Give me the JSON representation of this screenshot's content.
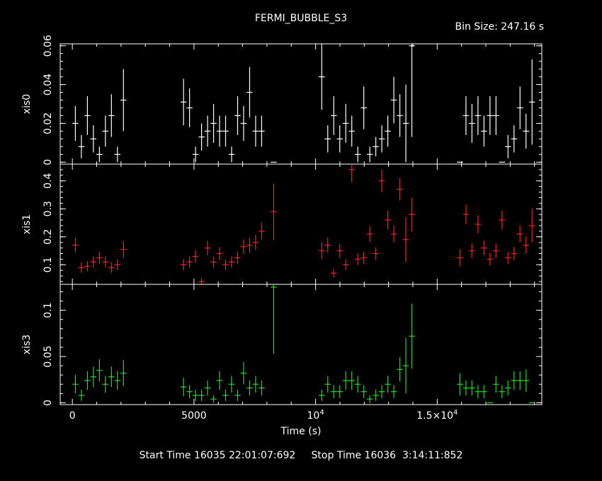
{
  "header": {
    "title": "FERMI_BUBBLE_S3",
    "bin_size": "Bin Size: 247.16 s"
  },
  "footer": {
    "times": "Start Time 16035 22:01:07:692     Stop Time 16036  3:14:11:852"
  },
  "chart_data": {
    "type": "scatter",
    "title": "FERMI_BUBBLE_S3",
    "xlabel": "Time (s)",
    "xlim": [
      -500,
      19300
    ],
    "xticks": [
      {
        "value": 0,
        "label": "0"
      },
      {
        "value": 5000,
        "label": "5000"
      },
      {
        "value": 10000,
        "label": "10",
        "sup": "4"
      },
      {
        "value": 15000,
        "label": "1.5×10",
        "sup": "4"
      }
    ],
    "bin_size": 247.16,
    "panels": [
      {
        "name": "xis0",
        "ylabel": "xis0",
        "color": "#ffffff",
        "ylim": [
          -0.001,
          0.061
        ],
        "yticks": [
          0,
          0.02,
          0.04,
          0.06
        ],
        "ytick_labels": [
          "0",
          "0.02",
          "0.04",
          "0.06"
        ],
        "points": [
          [
            124,
            0.02,
            0.009
          ],
          [
            371,
            0.008,
            0.006
          ],
          [
            618,
            0.024,
            0.01
          ],
          [
            865,
            0.012,
            0.007
          ],
          [
            1112,
            0.004,
            0.004
          ],
          [
            1359,
            0.016,
            0.008
          ],
          [
            1606,
            0.024,
            0.011
          ],
          [
            1853,
            0.004,
            0.004
          ],
          [
            2100,
            0.032,
            0.016
          ],
          [
            4571,
            0.031,
            0.012
          ],
          [
            4818,
            0.028,
            0.01
          ],
          [
            5065,
            0.004,
            0.004
          ],
          [
            5312,
            0.013,
            0.007
          ],
          [
            5559,
            0.016,
            0.008
          ],
          [
            5806,
            0.02,
            0.01
          ],
          [
            6053,
            0.016,
            0.008
          ],
          [
            6300,
            0.016,
            0.008
          ],
          [
            6547,
            0.004,
            0.004
          ],
          [
            6794,
            0.024,
            0.01
          ],
          [
            7041,
            0.02,
            0.009
          ],
          [
            7288,
            0.036,
            0.013
          ],
          [
            7535,
            0.016,
            0.008
          ],
          [
            7782,
            0.016,
            0.008
          ],
          [
            8276,
            0.0,
            0.0
          ],
          [
            10253,
            0.044,
            0.017
          ],
          [
            10500,
            0.012,
            0.007
          ],
          [
            10747,
            0.024,
            0.01
          ],
          [
            10994,
            0.012,
            0.007
          ],
          [
            11241,
            0.02,
            0.01
          ],
          [
            11488,
            0.016,
            0.008
          ],
          [
            11735,
            0.004,
            0.004
          ],
          [
            11982,
            0.028,
            0.011
          ],
          [
            12229,
            0.004,
            0.004
          ],
          [
            12476,
            0.008,
            0.005
          ],
          [
            12723,
            0.012,
            0.007
          ],
          [
            12970,
            0.016,
            0.008
          ],
          [
            13217,
            0.032,
            0.012
          ],
          [
            13464,
            0.024,
            0.011
          ],
          [
            13711,
            0.02,
            0.02
          ],
          [
            13958,
            0.06,
            0.047
          ],
          [
            15935,
            0.0,
            0.0
          ],
          [
            16182,
            0.024,
            0.01
          ],
          [
            16429,
            0.02,
            0.01
          ],
          [
            16676,
            0.024,
            0.01
          ],
          [
            16923,
            0.016,
            0.008
          ],
          [
            17170,
            0.024,
            0.01
          ],
          [
            17417,
            0.024,
            0.01
          ],
          [
            17664,
            0.0,
            0.0
          ],
          [
            17911,
            0.008,
            0.006
          ],
          [
            18158,
            0.012,
            0.007
          ],
          [
            18405,
            0.028,
            0.011
          ],
          [
            18652,
            0.016,
            0.009
          ],
          [
            18899,
            0.031,
            0.022
          ]
        ]
      },
      {
        "name": "xis1",
        "ylabel": "xis1",
        "color": "#ff2020",
        "ylim": [
          0.03,
          0.46
        ],
        "yticks": [
          0.1,
          0.2,
          0.3,
          0.4
        ],
        "ytick_labels": [
          "0.1",
          "0.2",
          "0.3",
          "0.4"
        ],
        "points": [
          [
            124,
            0.17,
            0.025
          ],
          [
            371,
            0.09,
            0.018
          ],
          [
            618,
            0.095,
            0.018
          ],
          [
            865,
            0.11,
            0.02
          ],
          [
            1112,
            0.125,
            0.022
          ],
          [
            1359,
            0.11,
            0.02
          ],
          [
            1606,
            0.09,
            0.018
          ],
          [
            1853,
            0.1,
            0.019
          ],
          [
            2100,
            0.155,
            0.03
          ],
          [
            4571,
            0.1,
            0.02
          ],
          [
            4818,
            0.11,
            0.02
          ],
          [
            5065,
            0.13,
            0.022
          ],
          [
            5312,
            0.04,
            0.012
          ],
          [
            5559,
            0.16,
            0.025
          ],
          [
            5806,
            0.11,
            0.02
          ],
          [
            6053,
            0.14,
            0.024
          ],
          [
            6300,
            0.1,
            0.019
          ],
          [
            6547,
            0.11,
            0.02
          ],
          [
            6794,
            0.125,
            0.022
          ],
          [
            7041,
            0.165,
            0.026
          ],
          [
            7288,
            0.17,
            0.026
          ],
          [
            7535,
            0.18,
            0.027
          ],
          [
            7782,
            0.22,
            0.03
          ],
          [
            8276,
            0.29,
            0.1
          ],
          [
            10253,
            0.15,
            0.03
          ],
          [
            10500,
            0.17,
            0.027
          ],
          [
            10747,
            0.07,
            0.015
          ],
          [
            10994,
            0.15,
            0.025
          ],
          [
            11241,
            0.1,
            0.019
          ],
          [
            11488,
            0.44,
            0.045
          ],
          [
            11735,
            0.12,
            0.021
          ],
          [
            11982,
            0.125,
            0.022
          ],
          [
            12229,
            0.21,
            0.028
          ],
          [
            12476,
            0.14,
            0.023
          ],
          [
            12723,
            0.4,
            0.04
          ],
          [
            12970,
            0.26,
            0.033
          ],
          [
            13217,
            0.21,
            0.03
          ],
          [
            13464,
            0.37,
            0.04
          ],
          [
            13711,
            0.19,
            0.08
          ],
          [
            13958,
            0.28,
            0.06
          ],
          [
            15935,
            0.125,
            0.03
          ],
          [
            16182,
            0.28,
            0.035
          ],
          [
            16429,
            0.15,
            0.025
          ],
          [
            16676,
            0.245,
            0.032
          ],
          [
            16923,
            0.16,
            0.026
          ],
          [
            17170,
            0.12,
            0.022
          ],
          [
            17417,
            0.15,
            0.025
          ],
          [
            17664,
            0.26,
            0.033
          ],
          [
            17911,
            0.125,
            0.022
          ],
          [
            18158,
            0.14,
            0.024
          ],
          [
            18405,
            0.21,
            0.03
          ],
          [
            18652,
            0.17,
            0.03
          ],
          [
            18899,
            0.24,
            0.06
          ]
        ]
      },
      {
        "name": "xis3",
        "ylabel": "xis3",
        "color": "#20e020",
        "ylim": [
          -0.002,
          0.128
        ],
        "yticks": [
          0,
          0.05,
          0.1
        ],
        "ytick_labels": [
          "0",
          "0.05",
          "0.1"
        ],
        "points": [
          [
            124,
            0.02,
            0.01
          ],
          [
            371,
            0.008,
            0.006
          ],
          [
            618,
            0.024,
            0.01
          ],
          [
            865,
            0.028,
            0.011
          ],
          [
            1112,
            0.035,
            0.012
          ],
          [
            1359,
            0.02,
            0.009
          ],
          [
            1606,
            0.028,
            0.011
          ],
          [
            1853,
            0.024,
            0.01
          ],
          [
            2100,
            0.032,
            0.014
          ],
          [
            4571,
            0.017,
            0.01
          ],
          [
            4818,
            0.012,
            0.007
          ],
          [
            5065,
            0.008,
            0.006
          ],
          [
            5312,
            0.008,
            0.006
          ],
          [
            5559,
            0.016,
            0.008
          ],
          [
            5806,
            0.004,
            0.004
          ],
          [
            6053,
            0.024,
            0.01
          ],
          [
            6300,
            0.008,
            0.006
          ],
          [
            6547,
            0.02,
            0.009
          ],
          [
            6794,
            0.008,
            0.006
          ],
          [
            7041,
            0.032,
            0.012
          ],
          [
            7288,
            0.016,
            0.008
          ],
          [
            7535,
            0.02,
            0.009
          ],
          [
            7782,
            0.016,
            0.008
          ],
          [
            8276,
            0.125,
            0.072
          ],
          [
            10253,
            0.008,
            0.006
          ],
          [
            10500,
            0.02,
            0.009
          ],
          [
            10747,
            0.012,
            0.007
          ],
          [
            10994,
            0.012,
            0.007
          ],
          [
            11241,
            0.024,
            0.01
          ],
          [
            11488,
            0.024,
            0.01
          ],
          [
            11735,
            0.02,
            0.009
          ],
          [
            11982,
            0.012,
            0.007
          ],
          [
            12229,
            0.004,
            0.004
          ],
          [
            12476,
            0.008,
            0.006
          ],
          [
            12723,
            0.012,
            0.007
          ],
          [
            12970,
            0.02,
            0.009
          ],
          [
            13217,
            0.012,
            0.007
          ],
          [
            13464,
            0.036,
            0.013
          ],
          [
            13711,
            0.04,
            0.03
          ],
          [
            13958,
            0.072,
            0.035
          ],
          [
            15935,
            0.02,
            0.012
          ],
          [
            16182,
            0.016,
            0.008
          ],
          [
            16429,
            0.016,
            0.008
          ],
          [
            16676,
            0.012,
            0.007
          ],
          [
            16923,
            0.012,
            0.007
          ],
          [
            17170,
            0.0,
            0.0
          ],
          [
            17417,
            0.02,
            0.009
          ],
          [
            17664,
            0.012,
            0.007
          ],
          [
            17911,
            0.016,
            0.008
          ],
          [
            18158,
            0.024,
            0.01
          ],
          [
            18405,
            0.024,
            0.01
          ],
          [
            18652,
            0.024,
            0.012
          ],
          [
            18899,
            0.0,
            0.0
          ]
        ]
      }
    ]
  }
}
